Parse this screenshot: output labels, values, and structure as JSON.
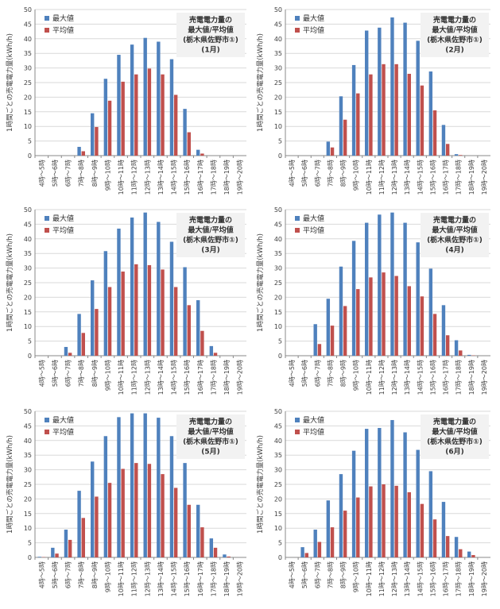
{
  "colors": {
    "max": "#4f81bd",
    "avg": "#c0504d",
    "grid": "#d9d9d9",
    "axis": "#888888",
    "title_bg": "#f2f2f2"
  },
  "chart_data": [
    {
      "type": "bar",
      "title_lines": [
        "売電電力量の",
        "最大値/平均値",
        "(栃木県佐野市①)",
        "(1月)"
      ],
      "ylabel": "1時間ごとの売電電力量(kWh/h)",
      "ylim": [
        0,
        50
      ],
      "yticks": [
        0,
        5,
        10,
        15,
        20,
        25,
        30,
        35,
        40,
        45,
        50
      ],
      "grid": true,
      "legend": "top-left",
      "categories": [
        "4時～5時",
        "5時～6時",
        "6時～7時",
        "7時～8時",
        "8時～9時",
        "9時～10時",
        "10時～11時",
        "11時～12時",
        "12時～13時",
        "13時～14時",
        "14時～15時",
        "15時～16時",
        "16時～17時",
        "17時～18時",
        "18時～19時",
        "19時～20時"
      ],
      "series": [
        {
          "name": "最大値",
          "color": "#4f81bd",
          "values": [
            0,
            0,
            0,
            3,
            14.5,
            26.3,
            34.5,
            38,
            40.3,
            39,
            33,
            16,
            2,
            0,
            0,
            0
          ]
        },
        {
          "name": "平均値",
          "color": "#c0504d",
          "values": [
            0,
            0,
            0,
            1.5,
            9.8,
            18.8,
            25.3,
            27.8,
            29.8,
            27.8,
            20.8,
            8,
            0.7,
            0,
            0,
            0
          ]
        }
      ]
    },
    {
      "type": "bar",
      "title_lines": [
        "売電電力量の",
        "最大値/平均値",
        "(栃木県佐野市①)",
        "(2月)"
      ],
      "ylabel": "1時間ごとの売電電力量(kWh/h)",
      "ylim": [
        0,
        50
      ],
      "yticks": [
        0,
        5,
        10,
        15,
        20,
        25,
        30,
        35,
        40,
        45,
        50
      ],
      "grid": true,
      "legend": "top-left",
      "categories": [
        "4時～5時",
        "5時～6時",
        "6時～7時",
        "7時～8時",
        "8時～9時",
        "9時～10時",
        "10時～11時",
        "11時～12時",
        "12時～13時",
        "13時～14時",
        "14時～15時",
        "15時～16時",
        "16時～17時",
        "17時～18時",
        "18時～19時",
        "19時～20時"
      ],
      "series": [
        {
          "name": "最大値",
          "color": "#4f81bd",
          "values": [
            0,
            0,
            0,
            4.8,
            20.3,
            31,
            42.8,
            43.8,
            47.3,
            45.5,
            39.3,
            28.8,
            10.5,
            0.5,
            0,
            0
          ]
        },
        {
          "name": "平均値",
          "color": "#c0504d",
          "values": [
            0,
            0,
            0,
            2.8,
            12.3,
            21.3,
            27.8,
            31.3,
            31.3,
            28,
            24,
            15.5,
            4,
            0.2,
            0,
            0
          ]
        }
      ]
    },
    {
      "type": "bar",
      "title_lines": [
        "売電電力量の",
        "最大値/平均値",
        "(栃木県佐野市①)",
        "(3月)"
      ],
      "ylabel": "1時間ごとの売電電力量(kWh/h)",
      "ylim": [
        0,
        50
      ],
      "yticks": [
        0,
        5,
        10,
        15,
        20,
        25,
        30,
        35,
        40,
        45,
        50
      ],
      "grid": true,
      "legend": "top-left",
      "categories": [
        "4時～5時",
        "5時～6時",
        "6時～7時",
        "7時～8時",
        "8時～9時",
        "9時～10時",
        "10時～11時",
        "11時～12時",
        "12時～13時",
        "13時～14時",
        "14時～15時",
        "15時～16時",
        "16時～17時",
        "17時～18時",
        "18時～19時",
        "19時～20時"
      ],
      "series": [
        {
          "name": "最大値",
          "color": "#4f81bd",
          "values": [
            0,
            0,
            3,
            14.3,
            25.8,
            35.8,
            43.5,
            47.3,
            49,
            45.8,
            39,
            30.3,
            19,
            3.3,
            0,
            0
          ]
        },
        {
          "name": "平均値",
          "color": "#c0504d",
          "values": [
            0,
            0,
            1,
            7.8,
            16,
            23.5,
            28.8,
            31.3,
            31,
            29.5,
            23.5,
            17.3,
            8.5,
            1,
            0,
            0
          ]
        }
      ]
    },
    {
      "type": "bar",
      "title_lines": [
        "売電電力量の",
        "最大値/平均値",
        "(栃木県佐野市①)",
        "(4月)"
      ],
      "ylabel": "1時間ごとの売電電力量(kWh/h)",
      "ylim": [
        0,
        50
      ],
      "yticks": [
        0,
        5,
        10,
        15,
        20,
        25,
        30,
        35,
        40,
        45,
        50
      ],
      "grid": true,
      "legend": "top-left",
      "categories": [
        "4時～5時",
        "5時～6時",
        "6時～7時",
        "7時～8時",
        "8時～9時",
        "9時～10時",
        "10時～11時",
        "11時～12時",
        "12時～13時",
        "13時～14時",
        "14時～15時",
        "15時～16時",
        "16時～17時",
        "17時～18時",
        "18時～19時",
        "19時～20時"
      ],
      "series": [
        {
          "name": "最大値",
          "color": "#4f81bd",
          "values": [
            0,
            0,
            10.8,
            19.5,
            30.5,
            39.3,
            45.5,
            48.3,
            49,
            45.5,
            38.8,
            29.8,
            17.3,
            5.3,
            0.3,
            0
          ]
        },
        {
          "name": "平均値",
          "color": "#c0504d",
          "values": [
            0,
            0,
            4,
            10.3,
            17,
            22.8,
            26.8,
            28.5,
            27.3,
            23.8,
            20.3,
            14.3,
            7,
            1.8,
            0.1,
            0
          ]
        }
      ]
    },
    {
      "type": "bar",
      "title_lines": [
        "売電電力量の",
        "最大値/平均値",
        "(栃木県佐野市①)",
        "(5月)"
      ],
      "ylabel": "1時間ごとの売電電力量(kWh/h)",
      "ylim": [
        0,
        50
      ],
      "yticks": [
        0,
        5,
        10,
        15,
        20,
        25,
        30,
        35,
        40,
        45,
        50
      ],
      "grid": true,
      "legend": "top-left",
      "categories": [
        "4時～5時",
        "5時～6時",
        "6時～7時",
        "7時～8時",
        "8時～9時",
        "9時～10時",
        "10時～11時",
        "11時～12時",
        "12時～13時",
        "13時～14時",
        "14時～15時",
        "15時～16時",
        "16時～17時",
        "17時～18時",
        "18時～19時",
        "19時～20時"
      ],
      "series": [
        {
          "name": "最大値",
          "color": "#4f81bd",
          "values": [
            0.2,
            3.3,
            9.5,
            22.8,
            32.8,
            41.5,
            48,
            49.3,
            49.3,
            47.8,
            41.5,
            32.3,
            18,
            6.5,
            1,
            0
          ]
        },
        {
          "name": "平均値",
          "color": "#c0504d",
          "values": [
            0.1,
            1.3,
            6,
            13.5,
            20.8,
            25.5,
            30.3,
            32.3,
            32,
            28.5,
            23.8,
            18,
            10.3,
            3.3,
            0.3,
            0
          ]
        }
      ]
    },
    {
      "type": "bar",
      "title_lines": [
        "売電電力量の",
        "最大値/平均値",
        "(栃木県佐野市①)",
        "(6月)"
      ],
      "ylabel": "1時間ごとの売電電力量(kWh/h)",
      "ylim": [
        0,
        50
      ],
      "yticks": [
        0,
        5,
        10,
        15,
        20,
        25,
        30,
        35,
        40,
        45,
        50
      ],
      "grid": true,
      "legend": "top-left",
      "categories": [
        "4時～5時",
        "5時～6時",
        "6時～7時",
        "7時～8時",
        "8時～9時",
        "9時～10時",
        "10時～11時",
        "11時～12時",
        "12時～13時",
        "13時～14時",
        "14時～15時",
        "15時～16時",
        "16時～17時",
        "17時～18時",
        "18時～19時",
        "19時～20時"
      ],
      "series": [
        {
          "name": "最大値",
          "color": "#4f81bd",
          "values": [
            0,
            3.5,
            9.5,
            19.5,
            28.5,
            36.5,
            44,
            44.3,
            47,
            42.8,
            36.8,
            29.5,
            19,
            7,
            2,
            0
          ]
        },
        {
          "name": "平均値",
          "color": "#c0504d",
          "values": [
            0,
            1.5,
            5.3,
            10.3,
            16,
            20.5,
            24.3,
            25,
            24.5,
            22.3,
            18.3,
            13,
            7.3,
            2.8,
            0.8,
            0
          ]
        }
      ]
    }
  ]
}
